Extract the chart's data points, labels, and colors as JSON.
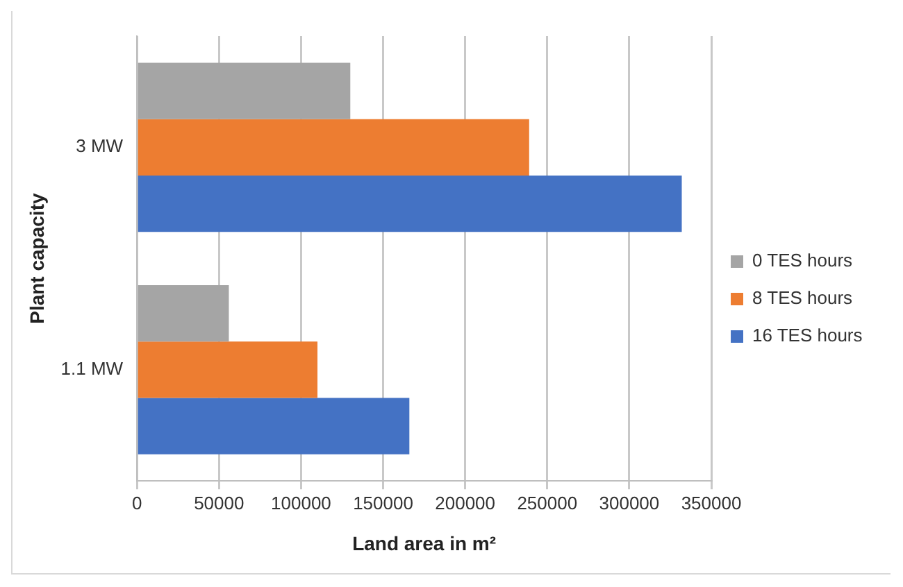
{
  "chart_data": {
    "type": "bar",
    "orientation": "horizontal",
    "xlabel": "Land area in m²",
    "ylabel": "Plant capacity",
    "categories": [
      "3 MW",
      "1.1 MW"
    ],
    "series": [
      {
        "name": "0 TES hours",
        "color": "#a5a5a5",
        "values": [
          130000,
          56000
        ]
      },
      {
        "name": "8 TES hours",
        "color": "#ed7d31",
        "values": [
          239000,
          110000
        ]
      },
      {
        "name": "16 TES hours",
        "color": "#4472c4",
        "values": [
          332000,
          166000
        ]
      }
    ],
    "xlim": [
      0,
      350000
    ],
    "xticks": [
      0,
      50000,
      100000,
      150000,
      200000,
      250000,
      300000,
      350000
    ],
    "grid": "x",
    "legend": "right"
  }
}
